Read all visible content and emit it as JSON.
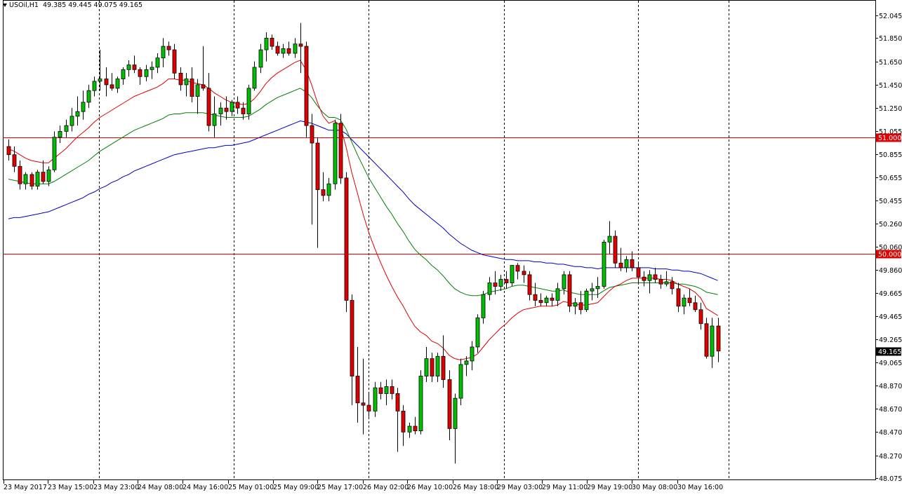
{
  "header": {
    "symbol": "USOil,H1",
    "ohlc": "49.385 49.445 49.075 49.165"
  },
  "colors": {
    "background": "#ffffff",
    "bull": "#00c000",
    "bear": "#e00000",
    "candle_outline": "#000000",
    "ma_fast": "#e00000",
    "ma_mid": "#008000",
    "ma_slow": "#0000c0",
    "hline": "#e00000",
    "price_tag": "#000000",
    "vgrid": "#000000"
  },
  "chart_data": {
    "type": "candlestick",
    "ylim": [
      48.075,
      52.045
    ],
    "y_ticks": [
      "52.045",
      "51.850",
      "51.650",
      "51.450",
      "51.250",
      "51.055",
      "50.855",
      "50.655",
      "50.455",
      "50.260",
      "50.060",
      "49.860",
      "49.665",
      "49.465",
      "49.265",
      "49.065",
      "48.870",
      "48.670",
      "48.470",
      "48.270",
      "48.075"
    ],
    "x_labels": [
      "23 May 2017",
      "23 May 15:00",
      "23 May 23:00",
      "24 May 08:00",
      "24 May 16:00",
      "25 May 01:00",
      "25 May 09:00",
      "25 May 17:00",
      "26 May 02:00",
      "26 May 10:00",
      "26 May 18:00",
      "29 May 03:00",
      "29 May 11:00",
      "29 May 19:00",
      "30 May 08:00",
      "30 May 16:00"
    ],
    "separators": [
      "23 May 15:00",
      "24 May 16:00",
      "25 May 17:00",
      "26 May 18:00",
      "29 May 19:00",
      "30 May 16:00"
    ],
    "horizontal_lines": [
      {
        "value": 51.0,
        "label": "51.000"
      },
      {
        "value": 50.0,
        "label": "50.000"
      }
    ],
    "current_price": {
      "value": 49.165,
      "label": "49.165"
    },
    "candles": [
      [
        50.92,
        50.98,
        50.8,
        50.85
      ],
      [
        50.85,
        50.92,
        50.7,
        50.75
      ],
      [
        50.75,
        50.8,
        50.55,
        50.6
      ],
      [
        50.6,
        50.7,
        50.55,
        50.68
      ],
      [
        50.68,
        50.7,
        50.55,
        50.58
      ],
      [
        50.58,
        50.72,
        50.55,
        50.7
      ],
      [
        50.7,
        50.8,
        50.6,
        50.62
      ],
      [
        50.62,
        50.75,
        50.58,
        50.72
      ],
      [
        50.72,
        51.05,
        50.7,
        51.0
      ],
      [
        51.0,
        51.1,
        50.95,
        51.05
      ],
      [
        51.05,
        51.15,
        51.0,
        51.1
      ],
      [
        51.1,
        51.25,
        51.05,
        51.18
      ],
      [
        51.18,
        51.35,
        51.1,
        51.22
      ],
      [
        51.22,
        51.4,
        51.15,
        51.3
      ],
      [
        51.3,
        51.45,
        51.25,
        51.4
      ],
      [
        51.4,
        51.52,
        51.35,
        51.48
      ],
      [
        51.48,
        51.75,
        51.4,
        51.5
      ],
      [
        51.5,
        51.6,
        51.35,
        51.45
      ],
      [
        51.45,
        51.55,
        51.4,
        51.42
      ],
      [
        51.42,
        51.52,
        51.38,
        51.5
      ],
      [
        51.5,
        51.6,
        51.45,
        51.58
      ],
      [
        51.58,
        51.66,
        51.52,
        51.62
      ],
      [
        51.62,
        51.7,
        51.55,
        51.58
      ],
      [
        51.58,
        51.6,
        51.45,
        51.52
      ],
      [
        51.52,
        51.62,
        51.48,
        51.58
      ],
      [
        51.58,
        51.65,
        51.5,
        51.6
      ],
      [
        51.6,
        51.72,
        51.55,
        51.68
      ],
      [
        51.68,
        51.85,
        51.6,
        51.78
      ],
      [
        51.78,
        51.82,
        51.7,
        51.75
      ],
      [
        51.75,
        51.8,
        51.5,
        51.55
      ],
      [
        51.55,
        51.6,
        51.4,
        51.45
      ],
      [
        51.45,
        51.55,
        51.35,
        51.5
      ],
      [
        51.5,
        51.6,
        51.3,
        51.35
      ],
      [
        51.35,
        51.5,
        51.2,
        51.45
      ],
      [
        51.45,
        51.78,
        51.4,
        51.42
      ],
      [
        51.42,
        51.55,
        51.05,
        51.1
      ],
      [
        51.1,
        51.35,
        51.0,
        51.2
      ],
      [
        51.2,
        51.3,
        51.1,
        51.25
      ],
      [
        51.25,
        51.35,
        51.15,
        51.22
      ],
      [
        51.22,
        51.32,
        51.18,
        51.3
      ],
      [
        51.3,
        51.35,
        51.2,
        51.25
      ],
      [
        51.25,
        51.3,
        51.15,
        51.2
      ],
      [
        51.2,
        51.45,
        51.15,
        51.42
      ],
      [
        51.42,
        51.65,
        51.4,
        51.6
      ],
      [
        51.6,
        51.8,
        51.55,
        51.75
      ],
      [
        51.75,
        51.9,
        51.65,
        51.85
      ],
      [
        51.85,
        51.88,
        51.75,
        51.78
      ],
      [
        51.78,
        51.82,
        51.7,
        51.72
      ],
      [
        51.72,
        51.8,
        51.68,
        51.76
      ],
      [
        51.76,
        51.82,
        51.7,
        51.72
      ],
      [
        51.72,
        51.85,
        51.68,
        51.8
      ],
      [
        51.8,
        51.98,
        51.55,
        51.78
      ],
      [
        51.78,
        51.82,
        51.0,
        51.1
      ],
      [
        51.1,
        51.2,
        50.25,
        50.95
      ],
      [
        50.95,
        51.0,
        50.05,
        50.55
      ],
      [
        50.55,
        50.7,
        50.45,
        50.5
      ],
      [
        50.5,
        50.65,
        50.45,
        50.6
      ],
      [
        50.6,
        51.15,
        50.55,
        51.12
      ],
      [
        51.12,
        51.2,
        50.6,
        50.65
      ],
      [
        50.65,
        50.7,
        49.5,
        49.6
      ],
      [
        49.6,
        49.65,
        48.7,
        48.95
      ],
      [
        48.95,
        49.2,
        48.55,
        48.72
      ],
      [
        48.72,
        49.1,
        48.45,
        48.7
      ],
      [
        48.7,
        48.8,
        48.6,
        48.65
      ],
      [
        48.65,
        48.9,
        48.6,
        48.85
      ],
      [
        48.85,
        48.9,
        48.75,
        48.8
      ],
      [
        48.8,
        48.92,
        48.7,
        48.86
      ],
      [
        48.86,
        48.92,
        48.75,
        48.8
      ],
      [
        48.8,
        48.85,
        48.3,
        48.65
      ],
      [
        48.65,
        48.7,
        48.35,
        48.47
      ],
      [
        48.47,
        48.55,
        48.42,
        48.52
      ],
      [
        48.52,
        48.6,
        48.45,
        48.48
      ],
      [
        48.48,
        49.0,
        48.45,
        48.95
      ],
      [
        48.95,
        49.2,
        48.9,
        49.1
      ],
      [
        49.1,
        49.15,
        48.9,
        48.95
      ],
      [
        48.95,
        49.15,
        48.9,
        49.12
      ],
      [
        49.12,
        49.3,
        48.85,
        48.92
      ],
      [
        48.92,
        49.0,
        48.4,
        48.5
      ],
      [
        48.5,
        48.8,
        48.2,
        48.76
      ],
      [
        48.76,
        49.1,
        48.7,
        49.05
      ],
      [
        49.05,
        49.12,
        48.95,
        49.08
      ],
      [
        49.08,
        49.25,
        49.0,
        49.2
      ],
      [
        49.2,
        49.48,
        49.15,
        49.45
      ],
      [
        49.45,
        49.68,
        49.4,
        49.65
      ],
      [
        49.65,
        49.8,
        49.6,
        49.75
      ],
      [
        49.75,
        49.85,
        49.65,
        49.72
      ],
      [
        49.72,
        49.82,
        49.68,
        49.78
      ],
      [
        49.78,
        49.85,
        49.7,
        49.75
      ],
      [
        49.75,
        49.88,
        49.72,
        49.9
      ],
      [
        49.9,
        49.92,
        49.78,
        49.85
      ],
      [
        49.85,
        49.9,
        49.75,
        49.82
      ],
      [
        49.82,
        49.85,
        49.6,
        49.65
      ],
      [
        49.65,
        49.75,
        49.55,
        49.6
      ],
      [
        49.6,
        49.66,
        49.55,
        49.58
      ],
      [
        49.58,
        49.64,
        49.55,
        49.62
      ],
      [
        49.62,
        49.66,
        49.55,
        49.6
      ],
      [
        49.6,
        49.75,
        49.55,
        49.7
      ],
      [
        49.7,
        49.85,
        49.65,
        49.82
      ],
      [
        49.82,
        49.85,
        49.5,
        49.55
      ],
      [
        49.55,
        49.62,
        49.48,
        49.58
      ],
      [
        49.58,
        49.68,
        49.48,
        49.52
      ],
      [
        49.52,
        49.7,
        49.5,
        49.68
      ],
      [
        49.68,
        49.75,
        49.6,
        49.7
      ],
      [
        49.7,
        49.8,
        49.62,
        49.72
      ],
      [
        49.72,
        50.12,
        49.7,
        50.1
      ],
      [
        50.1,
        50.28,
        50.0,
        50.15
      ],
      [
        50.15,
        50.2,
        49.88,
        49.92
      ],
      [
        49.92,
        50.05,
        49.85,
        49.88
      ],
      [
        49.88,
        49.98,
        49.84,
        49.95
      ],
      [
        49.95,
        50.02,
        49.85,
        49.88
      ],
      [
        49.88,
        49.92,
        49.75,
        49.8
      ],
      [
        49.8,
        49.85,
        49.72,
        49.77
      ],
      [
        49.77,
        49.86,
        49.66,
        49.82
      ],
      [
        49.82,
        49.88,
        49.75,
        49.78
      ],
      [
        49.78,
        49.82,
        49.7,
        49.74
      ],
      [
        49.74,
        49.85,
        49.72,
        49.76
      ],
      [
        49.76,
        49.8,
        49.65,
        49.7
      ],
      [
        49.7,
        49.75,
        49.5,
        49.55
      ],
      [
        49.55,
        49.65,
        49.48,
        49.62
      ],
      [
        49.62,
        49.7,
        49.55,
        49.58
      ],
      [
        49.58,
        49.64,
        49.5,
        49.52
      ],
      [
        49.52,
        49.58,
        49.35,
        49.4
      ],
      [
        49.4,
        49.45,
        49.1,
        49.12
      ],
      [
        49.12,
        49.45,
        49.02,
        49.38
      ],
      [
        49.38,
        49.45,
        49.07,
        49.165
      ]
    ],
    "ma_fast": [
      50.9,
      50.88,
      50.85,
      50.82,
      50.8,
      50.79,
      50.78,
      50.78,
      50.82,
      50.86,
      50.9,
      50.95,
      51.0,
      51.04,
      51.08,
      51.13,
      51.17,
      51.2,
      51.23,
      51.26,
      51.29,
      51.32,
      51.35,
      51.37,
      51.39,
      51.41,
      51.43,
      51.46,
      51.5,
      51.5,
      51.49,
      51.49,
      51.47,
      51.46,
      51.45,
      51.42,
      51.38,
      51.35,
      51.32,
      51.3,
      51.29,
      51.28,
      51.29,
      51.33,
      51.39,
      51.46,
      51.51,
      51.55,
      51.58,
      51.61,
      51.64,
      51.66,
      51.58,
      51.45,
      51.3,
      51.18,
      51.12,
      51.14,
      51.1,
      50.92,
      50.7,
      50.52,
      50.34,
      50.18,
      50.05,
      49.93,
      49.82,
      49.72,
      49.63,
      49.55,
      49.46,
      49.38,
      49.33,
      49.3,
      49.25,
      49.23,
      49.19,
      49.13,
      49.1,
      49.09,
      49.1,
      49.11,
      49.14,
      49.2,
      49.26,
      49.31,
      49.36,
      49.4,
      49.45,
      49.49,
      49.52,
      49.53,
      49.54,
      49.55,
      49.55,
      49.55,
      49.56,
      49.59,
      49.58,
      49.57,
      49.56,
      49.56,
      49.57,
      49.58,
      49.63,
      49.68,
      49.72,
      49.74,
      49.77,
      49.79,
      49.79,
      49.79,
      49.79,
      49.79,
      49.78,
      49.78,
      49.77,
      49.74,
      49.72,
      49.7,
      49.67,
      49.62,
      49.53,
      49.5,
      49.47
    ],
    "ma_mid": [
      50.64,
      50.63,
      50.62,
      50.61,
      50.6,
      50.6,
      50.6,
      50.6,
      50.62,
      50.65,
      50.68,
      50.71,
      50.74,
      50.77,
      50.8,
      50.84,
      50.88,
      50.91,
      50.94,
      50.97,
      51.0,
      51.03,
      51.06,
      51.08,
      51.1,
      51.12,
      51.14,
      51.16,
      51.19,
      51.2,
      51.2,
      51.21,
      51.21,
      51.21,
      51.21,
      51.2,
      51.19,
      51.18,
      51.17,
      51.17,
      51.17,
      51.17,
      51.18,
      51.21,
      51.24,
      51.28,
      51.31,
      51.34,
      51.36,
      51.38,
      51.4,
      51.42,
      51.39,
      51.34,
      51.27,
      51.21,
      51.17,
      51.17,
      51.15,
      51.07,
      50.96,
      50.85,
      50.75,
      50.65,
      50.57,
      50.49,
      50.41,
      50.34,
      50.26,
      50.19,
      50.11,
      50.04,
      49.99,
      49.95,
      49.9,
      49.86,
      49.81,
      49.75,
      49.7,
      49.67,
      49.65,
      49.64,
      49.64,
      49.65,
      49.67,
      49.68,
      49.69,
      49.7,
      49.72,
      49.73,
      49.73,
      49.72,
      49.71,
      49.7,
      49.69,
      49.68,
      49.68,
      49.69,
      49.67,
      49.66,
      49.65,
      49.65,
      49.65,
      49.65,
      49.68,
      49.71,
      49.72,
      49.73,
      49.74,
      49.75,
      49.75,
      49.75,
      49.75,
      49.75,
      49.75,
      49.75,
      49.75,
      49.74,
      49.74,
      49.73,
      49.72,
      49.7,
      49.67,
      49.66,
      49.65
    ],
    "ma_slow": [
      50.3,
      50.31,
      50.31,
      50.32,
      50.33,
      50.34,
      50.35,
      50.36,
      50.38,
      50.4,
      50.42,
      50.44,
      50.46,
      50.48,
      50.51,
      50.53,
      50.56,
      50.58,
      50.61,
      50.63,
      50.66,
      50.68,
      50.71,
      50.73,
      50.75,
      50.77,
      50.79,
      50.81,
      50.83,
      50.85,
      50.86,
      50.87,
      50.88,
      50.89,
      50.9,
      50.91,
      50.91,
      50.92,
      50.93,
      50.93,
      50.94,
      50.95,
      50.96,
      50.98,
      51.0,
      51.02,
      51.04,
      51.06,
      51.08,
      51.1,
      51.12,
      51.14,
      51.13,
      51.12,
      51.1,
      51.08,
      51.06,
      51.06,
      51.06,
      51.03,
      50.98,
      50.93,
      50.88,
      50.83,
      50.78,
      50.73,
      50.68,
      50.63,
      50.58,
      50.53,
      50.47,
      50.42,
      50.38,
      50.34,
      50.3,
      50.26,
      50.22,
      50.17,
      50.13,
      50.09,
      50.06,
      50.03,
      50.01,
      49.99,
      49.98,
      49.97,
      49.96,
      49.95,
      49.95,
      49.94,
      49.94,
      49.94,
      49.93,
      49.93,
      49.92,
      49.92,
      49.91,
      49.91,
      49.9,
      49.89,
      49.89,
      49.88,
      49.88,
      49.87,
      49.88,
      49.88,
      49.88,
      49.88,
      49.88,
      49.88,
      49.88,
      49.88,
      49.88,
      49.87,
      49.87,
      49.87,
      49.86,
      49.86,
      49.85,
      49.85,
      49.84,
      49.83,
      49.81,
      49.79,
      49.77
    ]
  }
}
